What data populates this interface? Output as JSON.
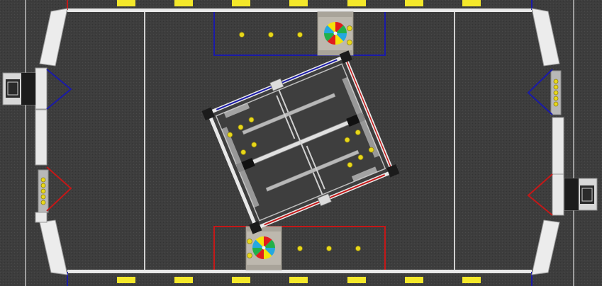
{
  "scene": {
    "title": "",
    "colors": {
      "carpet": "#3d3d3d",
      "wall": "#e8e8e8",
      "line_white": "#d8d8d8",
      "alliance_blue": "#1a1aa8",
      "alliance_red": "#c41818",
      "ball_yellow": "#e8d81a",
      "pad_yellow": "#f4e82a",
      "control_panel_red": "#e01d1d",
      "control_panel_green": "#22b04a",
      "control_panel_blue": "#25a8e0",
      "control_panel_yellow": "#f3e20c"
    },
    "icons": {
      "control_panel": "color-wheel-icon",
      "power_cell": "ball-icon",
      "goal": "power-port-icon",
      "loading_station": "loading-bay-icon",
      "shield_generator": "rendezvous-truss-icon"
    },
    "counts": {
      "top_trench_balls": 5,
      "bottom_trench_balls": 5,
      "generator_balls": 10,
      "left_port_balls": 5,
      "right_port_balls": 5
    }
  }
}
